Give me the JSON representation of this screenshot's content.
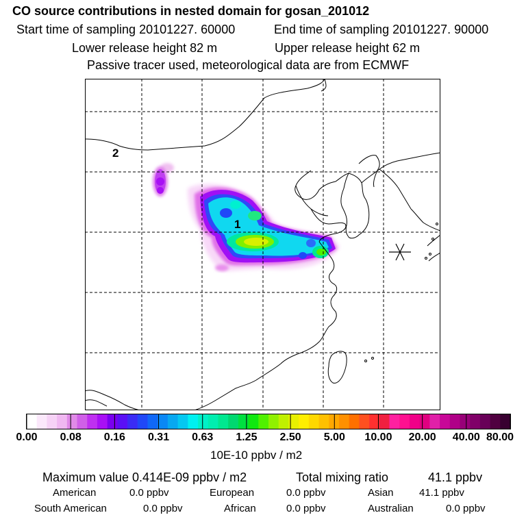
{
  "header": {
    "title": "CO  source contributions in nested domain for gosan_201012",
    "start_label": "Start time of sampling 20101227. 60000",
    "end_label": "End time of sampling 20101227. 90000",
    "lower_label": "Lower release height   82 m",
    "upper_label": "Upper release height   62 m",
    "tracer_label": "Passive tracer used, meteorological data are from ECMWF"
  },
  "map": {
    "region_labels": [
      "1",
      "2"
    ],
    "receptor_symbol": "asterisk-marker",
    "grid_lines": "dashed",
    "features": [
      "coastline",
      "country-borders",
      "concentration-plume"
    ]
  },
  "colorbar": {
    "tick_labels": [
      "0.00",
      "0.08",
      "0.16",
      "0.31",
      "0.63",
      "1.25",
      "2.50",
      "5.00",
      "10.00",
      "20.00",
      "40.00",
      "80.00"
    ],
    "unit_label": "10E-10 ppbv / m2",
    "colors": [
      "#ffffff",
      "#fbe8fb",
      "#f6d2f6",
      "#f0b8f1",
      "#e08ae8",
      "#d060e8",
      "#bf30f0",
      "#a810f5",
      "#7a00f0",
      "#5a10f5",
      "#3a2cf5",
      "#2048f8",
      "#1068f8",
      "#0a88f5",
      "#08a8f0",
      "#05c8f0",
      "#00f0f0",
      "#00f0c8",
      "#00eeb0",
      "#00e890",
      "#00d870",
      "#00e040",
      "#10e810",
      "#50f000",
      "#90f000",
      "#c0f000",
      "#e8f000",
      "#ffee00",
      "#ffd800",
      "#ffc000",
      "#ffa800",
      "#ff9000",
      "#ff7000",
      "#ff5020",
      "#ff3030",
      "#f02040",
      "#ff20a0",
      "#ff1090",
      "#f00088",
      "#e00080",
      "#e020a8",
      "#c80898",
      "#b00088",
      "#980078",
      "#800068",
      "#680058",
      "#500040",
      "#380030"
    ]
  },
  "footer": {
    "max_value_label": "Maximum value  0.414E-09 ppbv / m2",
    "total_mixing_label": "Total mixing ratio",
    "total_mixing_value": "41.1 ppbv",
    "american_label": "American",
    "american_value": "0.0 ppbv",
    "european_label": "European",
    "european_value": "0.0 ppbv",
    "asian_label": "Asian",
    "asian_value": "41.1 ppbv",
    "south_american_label": "South American",
    "south_american_value": "0.0 ppbv",
    "african_label": "African",
    "african_value": "0.0 ppbv",
    "australian_label": "Australian",
    "australian_value": "0.0 ppbv"
  }
}
